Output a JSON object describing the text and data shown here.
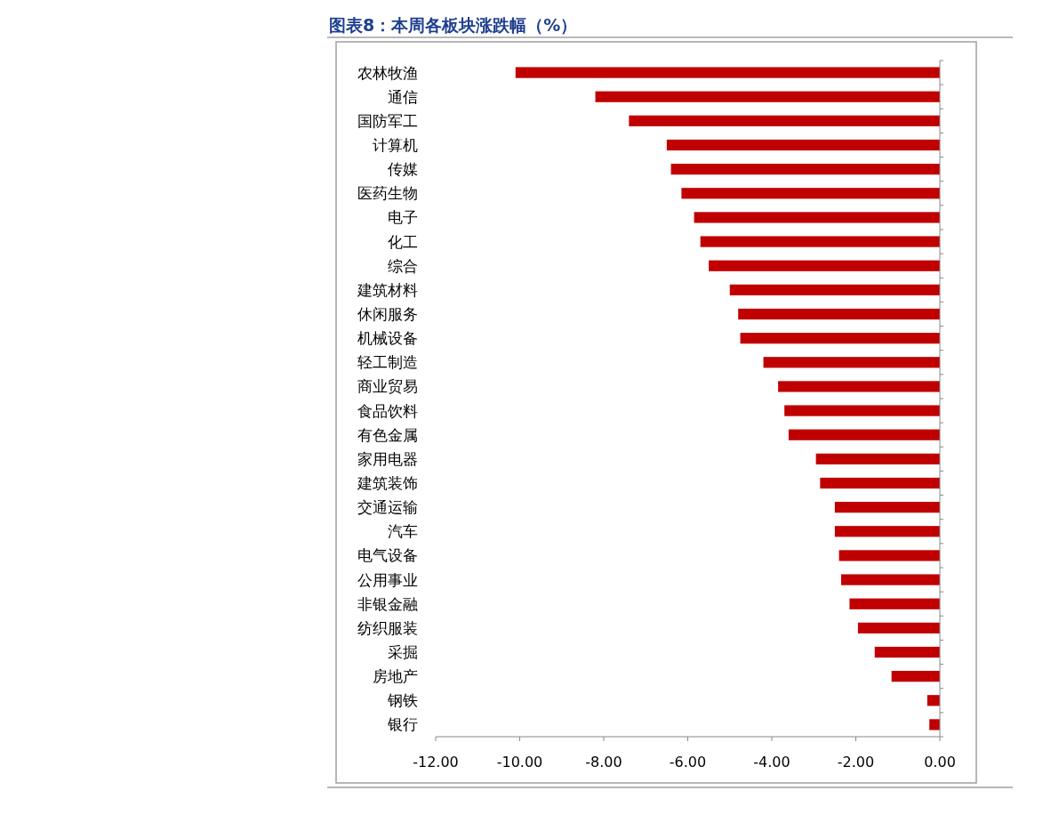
{
  "chart_data": {
    "type": "bar",
    "orientation": "horizontal",
    "title": "图表8：本周各板块涨跌幅（%）",
    "categories": [
      "农林牧渔",
      "通信",
      "国防军工",
      "计算机",
      "传媒",
      "医药生物",
      "电子",
      "化工",
      "综合",
      "建筑材料",
      "休闲服务",
      "机械设备",
      "轻工制造",
      "商业贸易",
      "食品饮料",
      "有色金属",
      "家用电器",
      "建筑装饰",
      "交通运输",
      "汽车",
      "电气设备",
      "公用事业",
      "非银金融",
      "纺织服装",
      "采掘",
      "房地产",
      "钢铁",
      "银行"
    ],
    "values": [
      -10.1,
      -8.2,
      -7.4,
      -6.5,
      -6.4,
      -6.15,
      -5.85,
      -5.7,
      -5.5,
      -5.0,
      -4.8,
      -4.75,
      -4.2,
      -3.85,
      -3.7,
      -3.6,
      -2.95,
      -2.85,
      -2.5,
      -2.5,
      -2.4,
      -2.35,
      -2.15,
      -1.95,
      -1.55,
      -1.15,
      -0.3,
      -0.25
    ],
    "color": "#c00000",
    "xlim": [
      -12,
      0
    ],
    "xticks": [
      {
        "value": -12,
        "label": "-12.00"
      },
      {
        "value": -10,
        "label": "-10.00"
      },
      {
        "value": -8,
        "label": "-8.00"
      },
      {
        "value": -6,
        "label": "-6.00"
      },
      {
        "value": -4,
        "label": "-4.00"
      },
      {
        "value": -2,
        "label": "-2.00"
      },
      {
        "value": 0,
        "label": "0.00"
      }
    ]
  }
}
